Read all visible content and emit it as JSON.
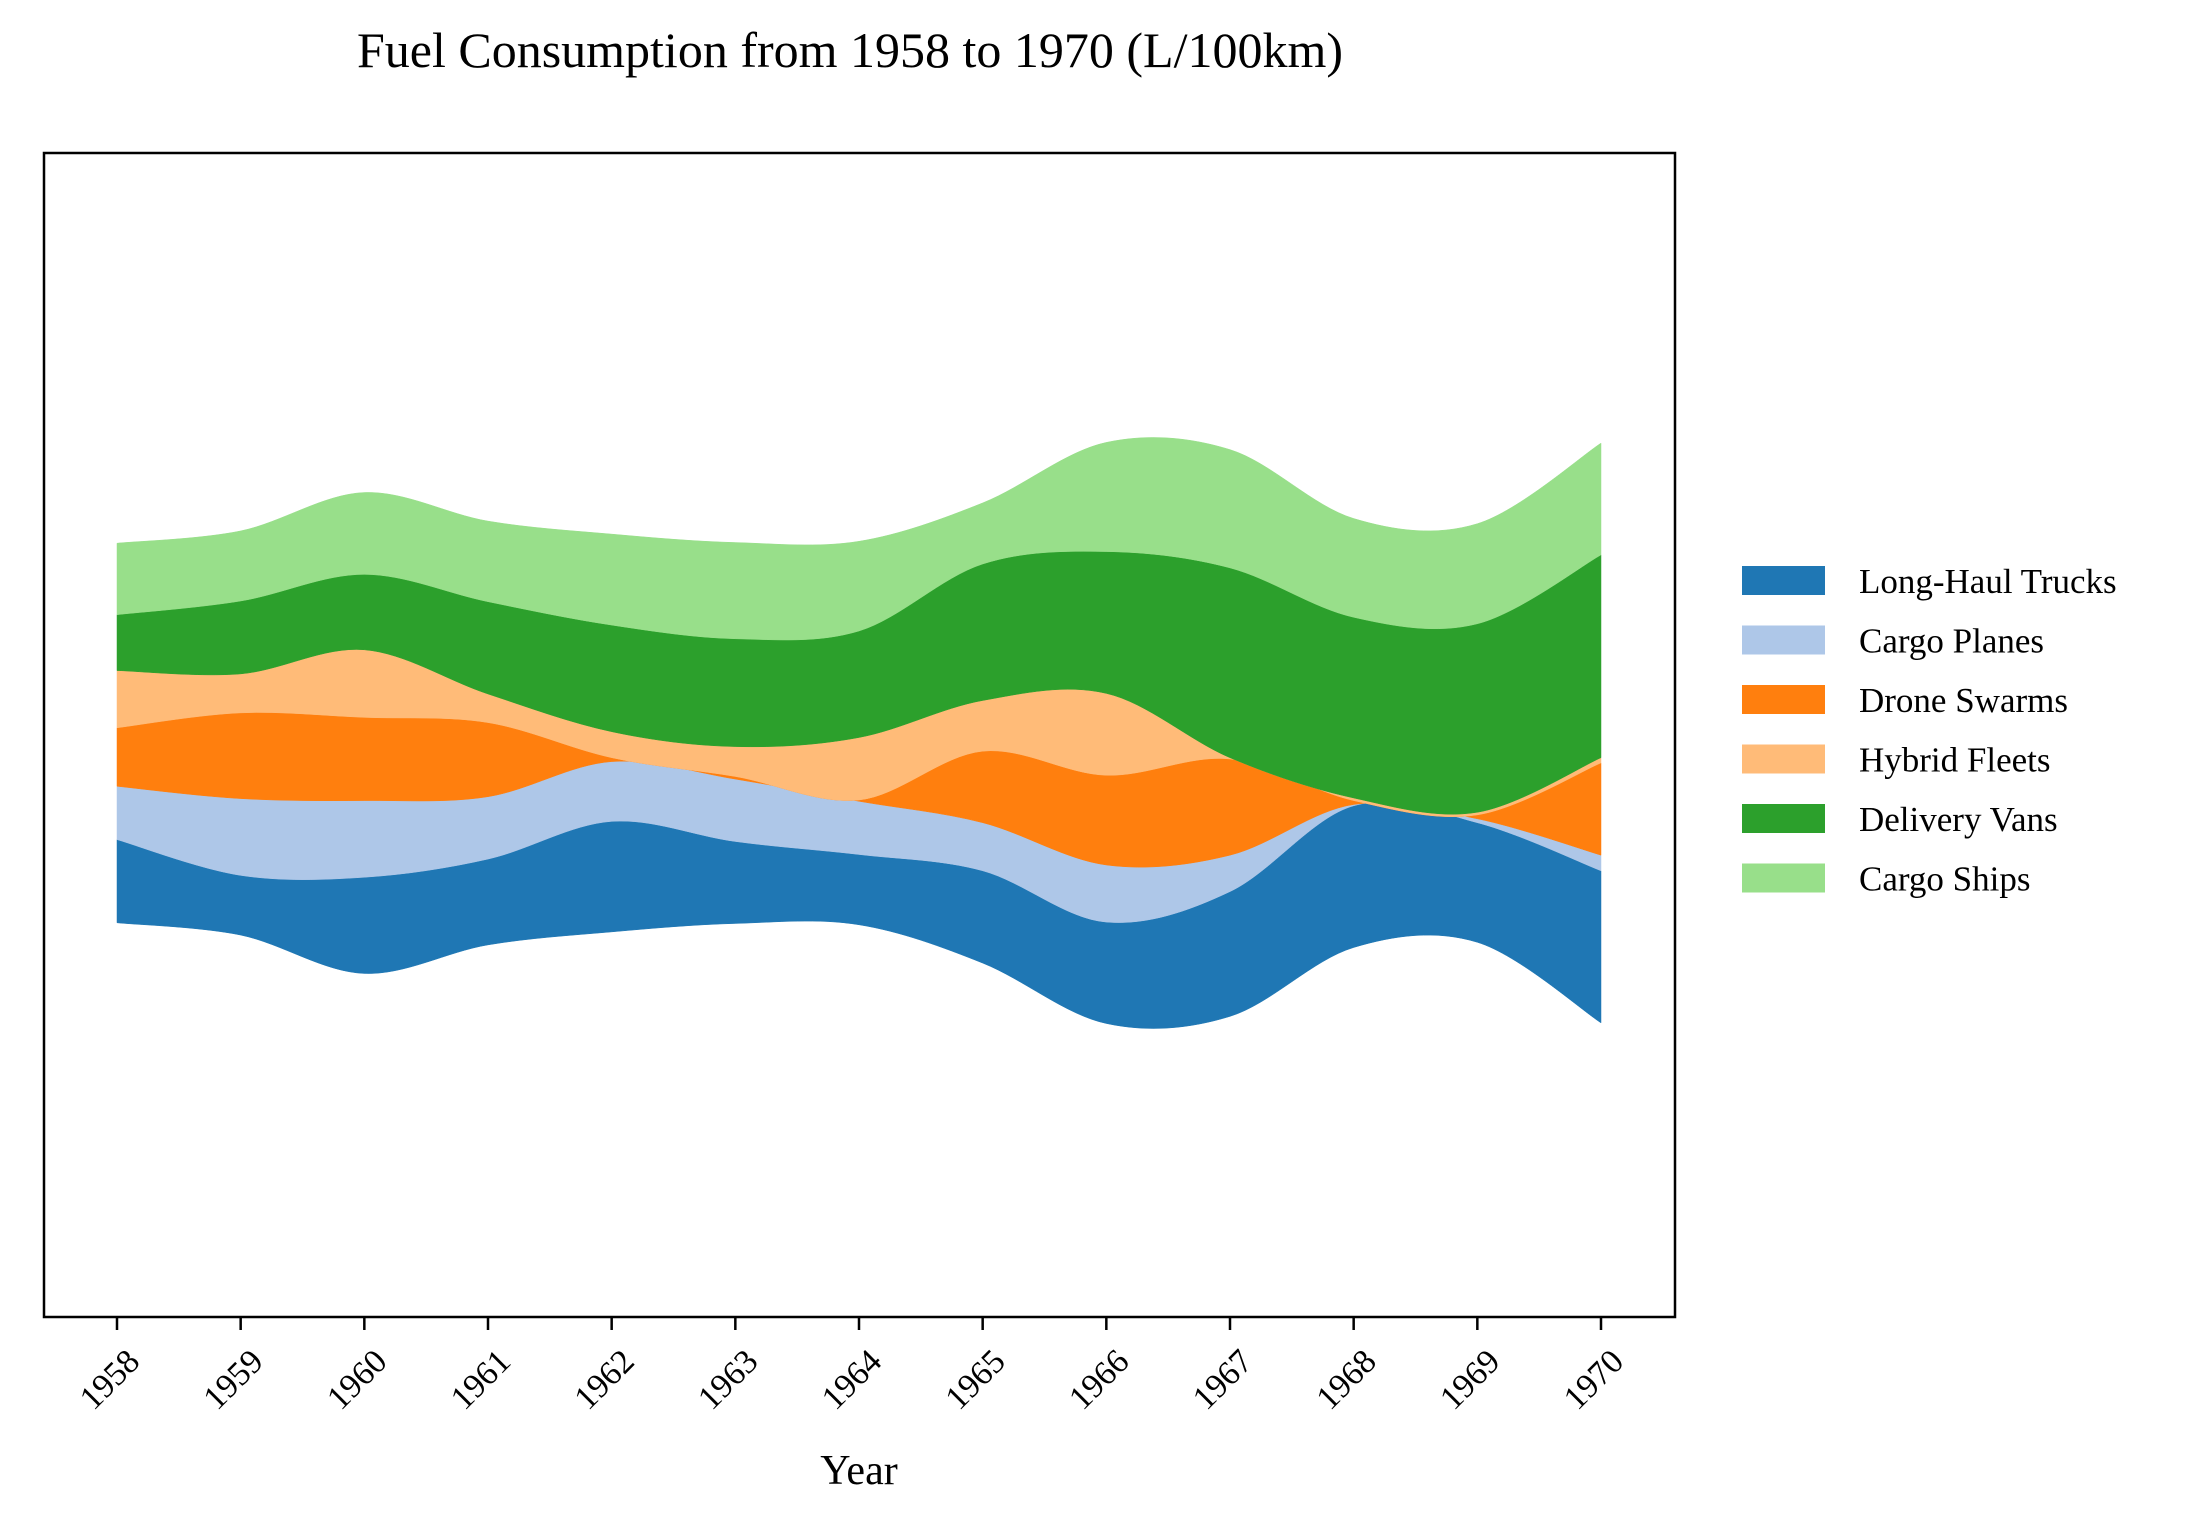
{
  "chart_data": {
    "type": "area",
    "subtype": "streamgraph",
    "title": "Fuel Consumption from 1958 to 1970 (L/100km)",
    "xlabel": "Year",
    "ylabel": "",
    "x": [
      1958,
      1959,
      1960,
      1961,
      1962,
      1963,
      1964,
      1965,
      1966,
      1967,
      1968,
      1969,
      1970
    ],
    "tick_labels": [
      "1958",
      "1959",
      "1960",
      "1961",
      "1962",
      "1963",
      "1964",
      "1965",
      "1966",
      "1967",
      "1968",
      "1969",
      "1970"
    ],
    "baseline": "wiggle",
    "y_axis_ticks": "hidden",
    "legend_position": "center-right",
    "grid": false,
    "series": [
      {
        "name": "Long-Haul Trucks",
        "color": "#1f77b4",
        "values": [
          6.4,
          4.6,
          7.4,
          6.6,
          8.5,
          6.3,
          5.4,
          7.1,
          7.8,
          9.6,
          10.9,
          9.2,
          11.7
        ]
      },
      {
        "name": "Cargo Planes",
        "color": "#aec7e8",
        "values": [
          4.1,
          5.9,
          5.9,
          4.8,
          4.6,
          4.8,
          4.1,
          3.7,
          4.4,
          2.8,
          0.1,
          0.3,
          1.2
        ]
      },
      {
        "name": "Drone Swarms",
        "color": "#ff7f0e",
        "values": [
          4.5,
          6.6,
          6.4,
          5.7,
          0.3,
          0.2,
          0.1,
          5.5,
          6.9,
          7.4,
          0.3,
          0.3,
          7.1
        ]
      },
      {
        "name": "Hybrid Fleets",
        "color": "#ffbb78",
        "values": [
          4.4,
          3.0,
          5.2,
          2.2,
          2.0,
          2.3,
          4.8,
          3.9,
          6.3,
          0.1,
          0.2,
          0.2,
          0.4
        ]
      },
      {
        "name": "Delivery Vans",
        "color": "#2ca02c",
        "values": [
          4.3,
          5.6,
          5.8,
          7.1,
          8.2,
          8.3,
          8.2,
          10.5,
          10.9,
          14.6,
          13.9,
          14.5,
          15.6
        ]
      },
      {
        "name": "Cargo Ships",
        "color": "#98df8a",
        "values": [
          5.5,
          5.4,
          6.3,
          6.2,
          7.0,
          7.4,
          6.9,
          4.7,
          8.4,
          9.1,
          7.6,
          7.7,
          8.6
        ]
      }
    ]
  }
}
